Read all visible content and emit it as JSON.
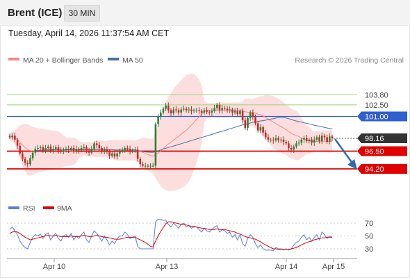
{
  "header": {
    "instrument": "Brent (ICE)",
    "timeframe": "30 MIN",
    "datetime": "Tuesday, April 14, 2026 11:37:54 AM CET"
  },
  "legend": {
    "ma20_bb": "MA 20 + Bollinger Bands",
    "ma50": "MA 50",
    "research": "Research © 2026 Trading Central",
    "rsi": "RSI",
    "ma9": "9MA"
  },
  "colors": {
    "bollinger_fill": "#fddede",
    "ma20": "#f08a8a",
    "ma50": "#4a6fa5",
    "resistance": "#9dd27a",
    "pivot": "#2f5fd0",
    "support": "#e00000",
    "last": "#333333",
    "rsi": "#5b7fd4",
    "rsi_ma": "#e00000",
    "bull": "#2e7d32",
    "bear": "#c62828",
    "arrow": "#2d6bb5"
  },
  "chart_data": [
    {
      "type": "candlestick",
      "title": "Brent (ICE) 30 MIN",
      "x_labels": [
        "Apr 10",
        "Apr 13",
        "Apr 14",
        "Apr 15"
      ],
      "levels": [
        {
          "label": "103.80",
          "value": 103.8,
          "kind": "resistance"
        },
        {
          "label": "102.50",
          "value": 102.5,
          "kind": "resistance"
        },
        {
          "label": "101.00",
          "value": 101.0,
          "kind": "pivot"
        },
        {
          "label": "98.16",
          "value": 98.16,
          "kind": "last"
        },
        {
          "label": "96.50",
          "value": 96.5,
          "kind": "support"
        },
        {
          "label": "94.20",
          "value": 94.2,
          "kind": "support"
        }
      ],
      "close": [
        98.3,
        98.5,
        98.0,
        97.2,
        96.2,
        95.5,
        95.0,
        94.8,
        95.6,
        96.3,
        96.8,
        96.9,
        97.0,
        96.6,
        96.9,
        97.1,
        96.5,
        96.8,
        97.0,
        96.6,
        96.4,
        96.7,
        96.8,
        96.7,
        96.9,
        96.5,
        96.8,
        96.6,
        96.9,
        97.0,
        96.6,
        96.3,
        96.8,
        97.5,
        97.3,
        96.9,
        96.4,
        96.7,
        96.5,
        95.9,
        96.2,
        95.8,
        96.2,
        96.5,
        96.6,
        96.9,
        96.8,
        96.5,
        96.6,
        96.7,
        95.5,
        94.8,
        94.6,
        94.6,
        94.6,
        94.6,
        94.6,
        100.0,
        101.0,
        101.5,
        102.0,
        102.4,
        101.8,
        101.4,
        101.9,
        101.8,
        101.5,
        101.9,
        102.0,
        101.8,
        101.9,
        101.7,
        101.8,
        101.8,
        101.7,
        101.5,
        101.8,
        101.6,
        101.5,
        101.7,
        102.1,
        102.5,
        101.8,
        102.1,
        102.0,
        101.8,
        101.9,
        101.5,
        101.7,
        101.3,
        101.7,
        100.5,
        99.5,
        100.8,
        101.5,
        101.0,
        100.1,
        99.2,
        99.6,
        98.9,
        98.3,
        98.0,
        98.0,
        97.9,
        98.2,
        97.9,
        98.0,
        97.7,
        97.5,
        96.9,
        96.7,
        97.1,
        97.5,
        97.6,
        98.0,
        98.2,
        97.8,
        98.0,
        97.6,
        98.0,
        98.3,
        97.8,
        98.5,
        98.3,
        97.7,
        98.4,
        98.16
      ],
      "series": [
        {
          "name": "MA 20 + Bollinger Bands"
        },
        {
          "name": "MA 50"
        }
      ]
    },
    {
      "type": "line",
      "title": "RSI",
      "ylim": [
        20,
        80
      ],
      "y_ticks": [
        "70",
        "50",
        "30"
      ],
      "series": [
        {
          "name": "RSI",
          "values": [
            60,
            64,
            58,
            52,
            42,
            36,
            32,
            30,
            40,
            48,
            52,
            50,
            53,
            46,
            52,
            55,
            44,
            50,
            54,
            46,
            42,
            50,
            52,
            48,
            54,
            44,
            50,
            46,
            52,
            56,
            44,
            40,
            50,
            58,
            54,
            48,
            42,
            50,
            44,
            36,
            42,
            38,
            46,
            50,
            50,
            56,
            52,
            46,
            48,
            50,
            34,
            30,
            30,
            30,
            30,
            30,
            30,
            72,
            76,
            76,
            74,
            75,
            68,
            64,
            70,
            66,
            62,
            68,
            70,
            64,
            66,
            62,
            64,
            64,
            60,
            56,
            62,
            58,
            56,
            60,
            64,
            66,
            56,
            60,
            58,
            54,
            56,
            48,
            52,
            44,
            52,
            38,
            34,
            46,
            52,
            48,
            38,
            32,
            36,
            30,
            28,
            28,
            28,
            27,
            32,
            30,
            30,
            28,
            30,
            28,
            30,
            36,
            40,
            42,
            48,
            52,
            44,
            48,
            42,
            48,
            52,
            44,
            56,
            52,
            46,
            50,
            48
          ]
        },
        {
          "name": "9MA",
          "values": [
            54,
            56,
            57,
            56,
            54,
            51,
            48,
            46,
            44,
            45,
            46,
            47,
            48,
            49,
            50,
            51,
            50,
            50,
            51,
            50,
            49,
            49,
            49,
            49,
            50,
            49,
            49,
            49,
            50,
            51,
            50,
            49,
            49,
            50,
            51,
            50,
            49,
            48,
            48,
            47,
            46,
            45,
            45,
            45,
            46,
            47,
            48,
            48,
            48,
            48,
            46,
            44,
            42,
            40,
            37,
            34,
            33,
            42,
            50,
            57,
            63,
            69,
            72,
            72,
            71,
            70,
            69,
            68,
            68,
            67,
            66,
            65,
            65,
            64,
            63,
            62,
            62,
            61,
            60,
            60,
            60,
            61,
            60,
            60,
            60,
            59,
            58,
            57,
            56,
            54,
            53,
            51,
            49,
            48,
            47,
            46,
            45,
            43,
            41,
            38,
            36,
            34,
            32,
            30,
            30,
            29,
            29,
            29,
            29,
            29,
            30,
            31,
            32,
            34,
            36,
            38,
            40,
            41,
            42,
            44,
            45,
            46,
            47,
            47,
            48,
            48,
            48
          ]
        }
      ]
    }
  ]
}
